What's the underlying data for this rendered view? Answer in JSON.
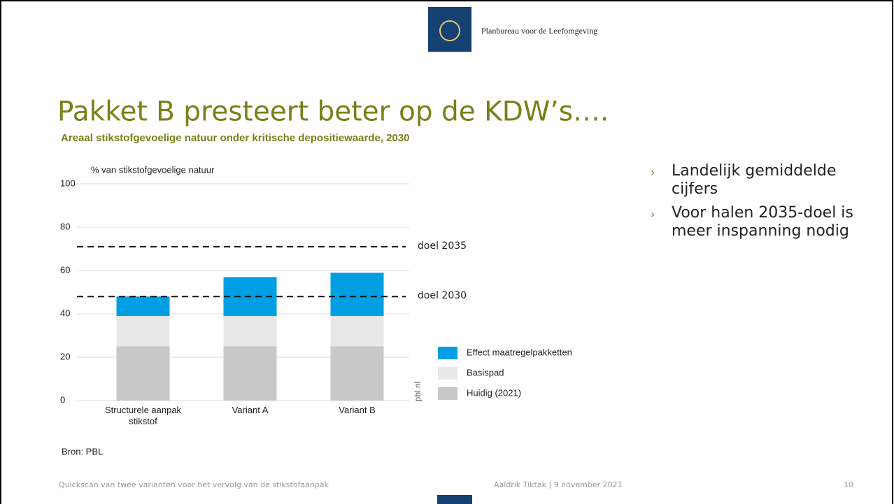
{
  "header": {
    "organisation": "Planbureau voor de Leefomgeving"
  },
  "slide_title": "Pakket B presteert beter op de KDW’s….",
  "chart_data": {
    "type": "stacked_bar",
    "title": "Areaal stikstofgevoelige natuur onder kritische depositiewaarde, 2030",
    "y_label": "% van stikstofgevoelige natuur",
    "categories": [
      "Structurele aanpak stikstof",
      "Variant A",
      "Variant B"
    ],
    "series": [
      {
        "name": "Huidig (2021)",
        "color": "#c8c8c8",
        "values": [
          25,
          25,
          25
        ]
      },
      {
        "name": "Basispad",
        "color": "#e8e8e8",
        "values": [
          14,
          14,
          14
        ]
      },
      {
        "name": "Effect maatregelpakketten",
        "color": "#009fe3",
        "values": [
          9,
          18,
          20
        ]
      }
    ],
    "reference_lines": [
      {
        "label": "doel 2035",
        "value": 71
      },
      {
        "label": "doel 2030",
        "value": 48
      }
    ],
    "ylim": [
      0,
      100
    ],
    "yticks": [
      0,
      20,
      40,
      60,
      80,
      100
    ],
    "grid": true,
    "watermark": "pbl.nl",
    "source": "Bron: PBL"
  },
  "bullets": [
    "Landelijk gemiddelde cijfers",
    "Voor halen 2035-doel is meer inspanning nodig"
  ],
  "footer": {
    "left": "Quickscan van twee varianten voor het vervolg van de stikstofaanpak",
    "center": "Aaldrik Tiktak | 9 november 2021",
    "page": "10"
  }
}
